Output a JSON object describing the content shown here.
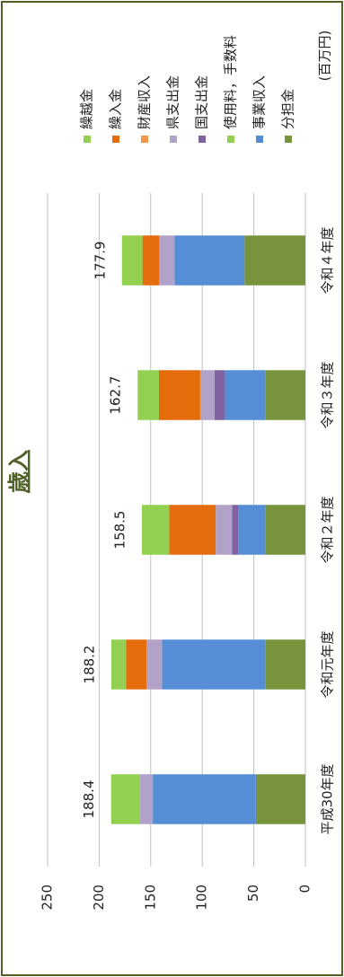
{
  "chart_data": {
    "type": "stacked_bar",
    "title": "歳入",
    "unit": "(百万円)",
    "categories": [
      "平成30年度",
      "令和元年度",
      "令和２年度",
      "令和３年度",
      "令和４年度"
    ],
    "totals": [
      188.4,
      188.2,
      158.5,
      162.7,
      177.9
    ],
    "series": [
      {
        "name": "分担金",
        "color": "#77933c",
        "values": [
          48,
          39,
          39,
          39,
          59
        ]
      },
      {
        "name": "事業収入",
        "color": "#558ed5",
        "values": [
          100,
          100,
          26,
          39,
          68
        ]
      },
      {
        "name": "使用料，手数料",
        "color": "#92d050",
        "values": [
          0,
          0,
          0,
          0,
          0
        ]
      },
      {
        "name": "国支出金",
        "color": "#8064a2",
        "values": [
          0,
          0,
          6,
          10,
          0
        ]
      },
      {
        "name": "県支出金",
        "color": "#b3a2c7",
        "values": [
          13,
          15,
          16,
          14,
          15
        ]
      },
      {
        "name": "財産収入",
        "color": "#f79646",
        "values": [
          0,
          0,
          0,
          0,
          0
        ]
      },
      {
        "name": "繰入金",
        "color": "#e46c0a",
        "values": [
          0,
          20,
          45,
          40,
          16
        ]
      },
      {
        "name": "繰越金",
        "color": "#92d050",
        "values": [
          27.4,
          14.2,
          26.5,
          20.7,
          19.9
        ]
      }
    ],
    "ylim": [
      0,
      250
    ],
    "yticks": [
      0,
      50,
      100,
      150,
      200,
      250
    ],
    "grid": true
  }
}
